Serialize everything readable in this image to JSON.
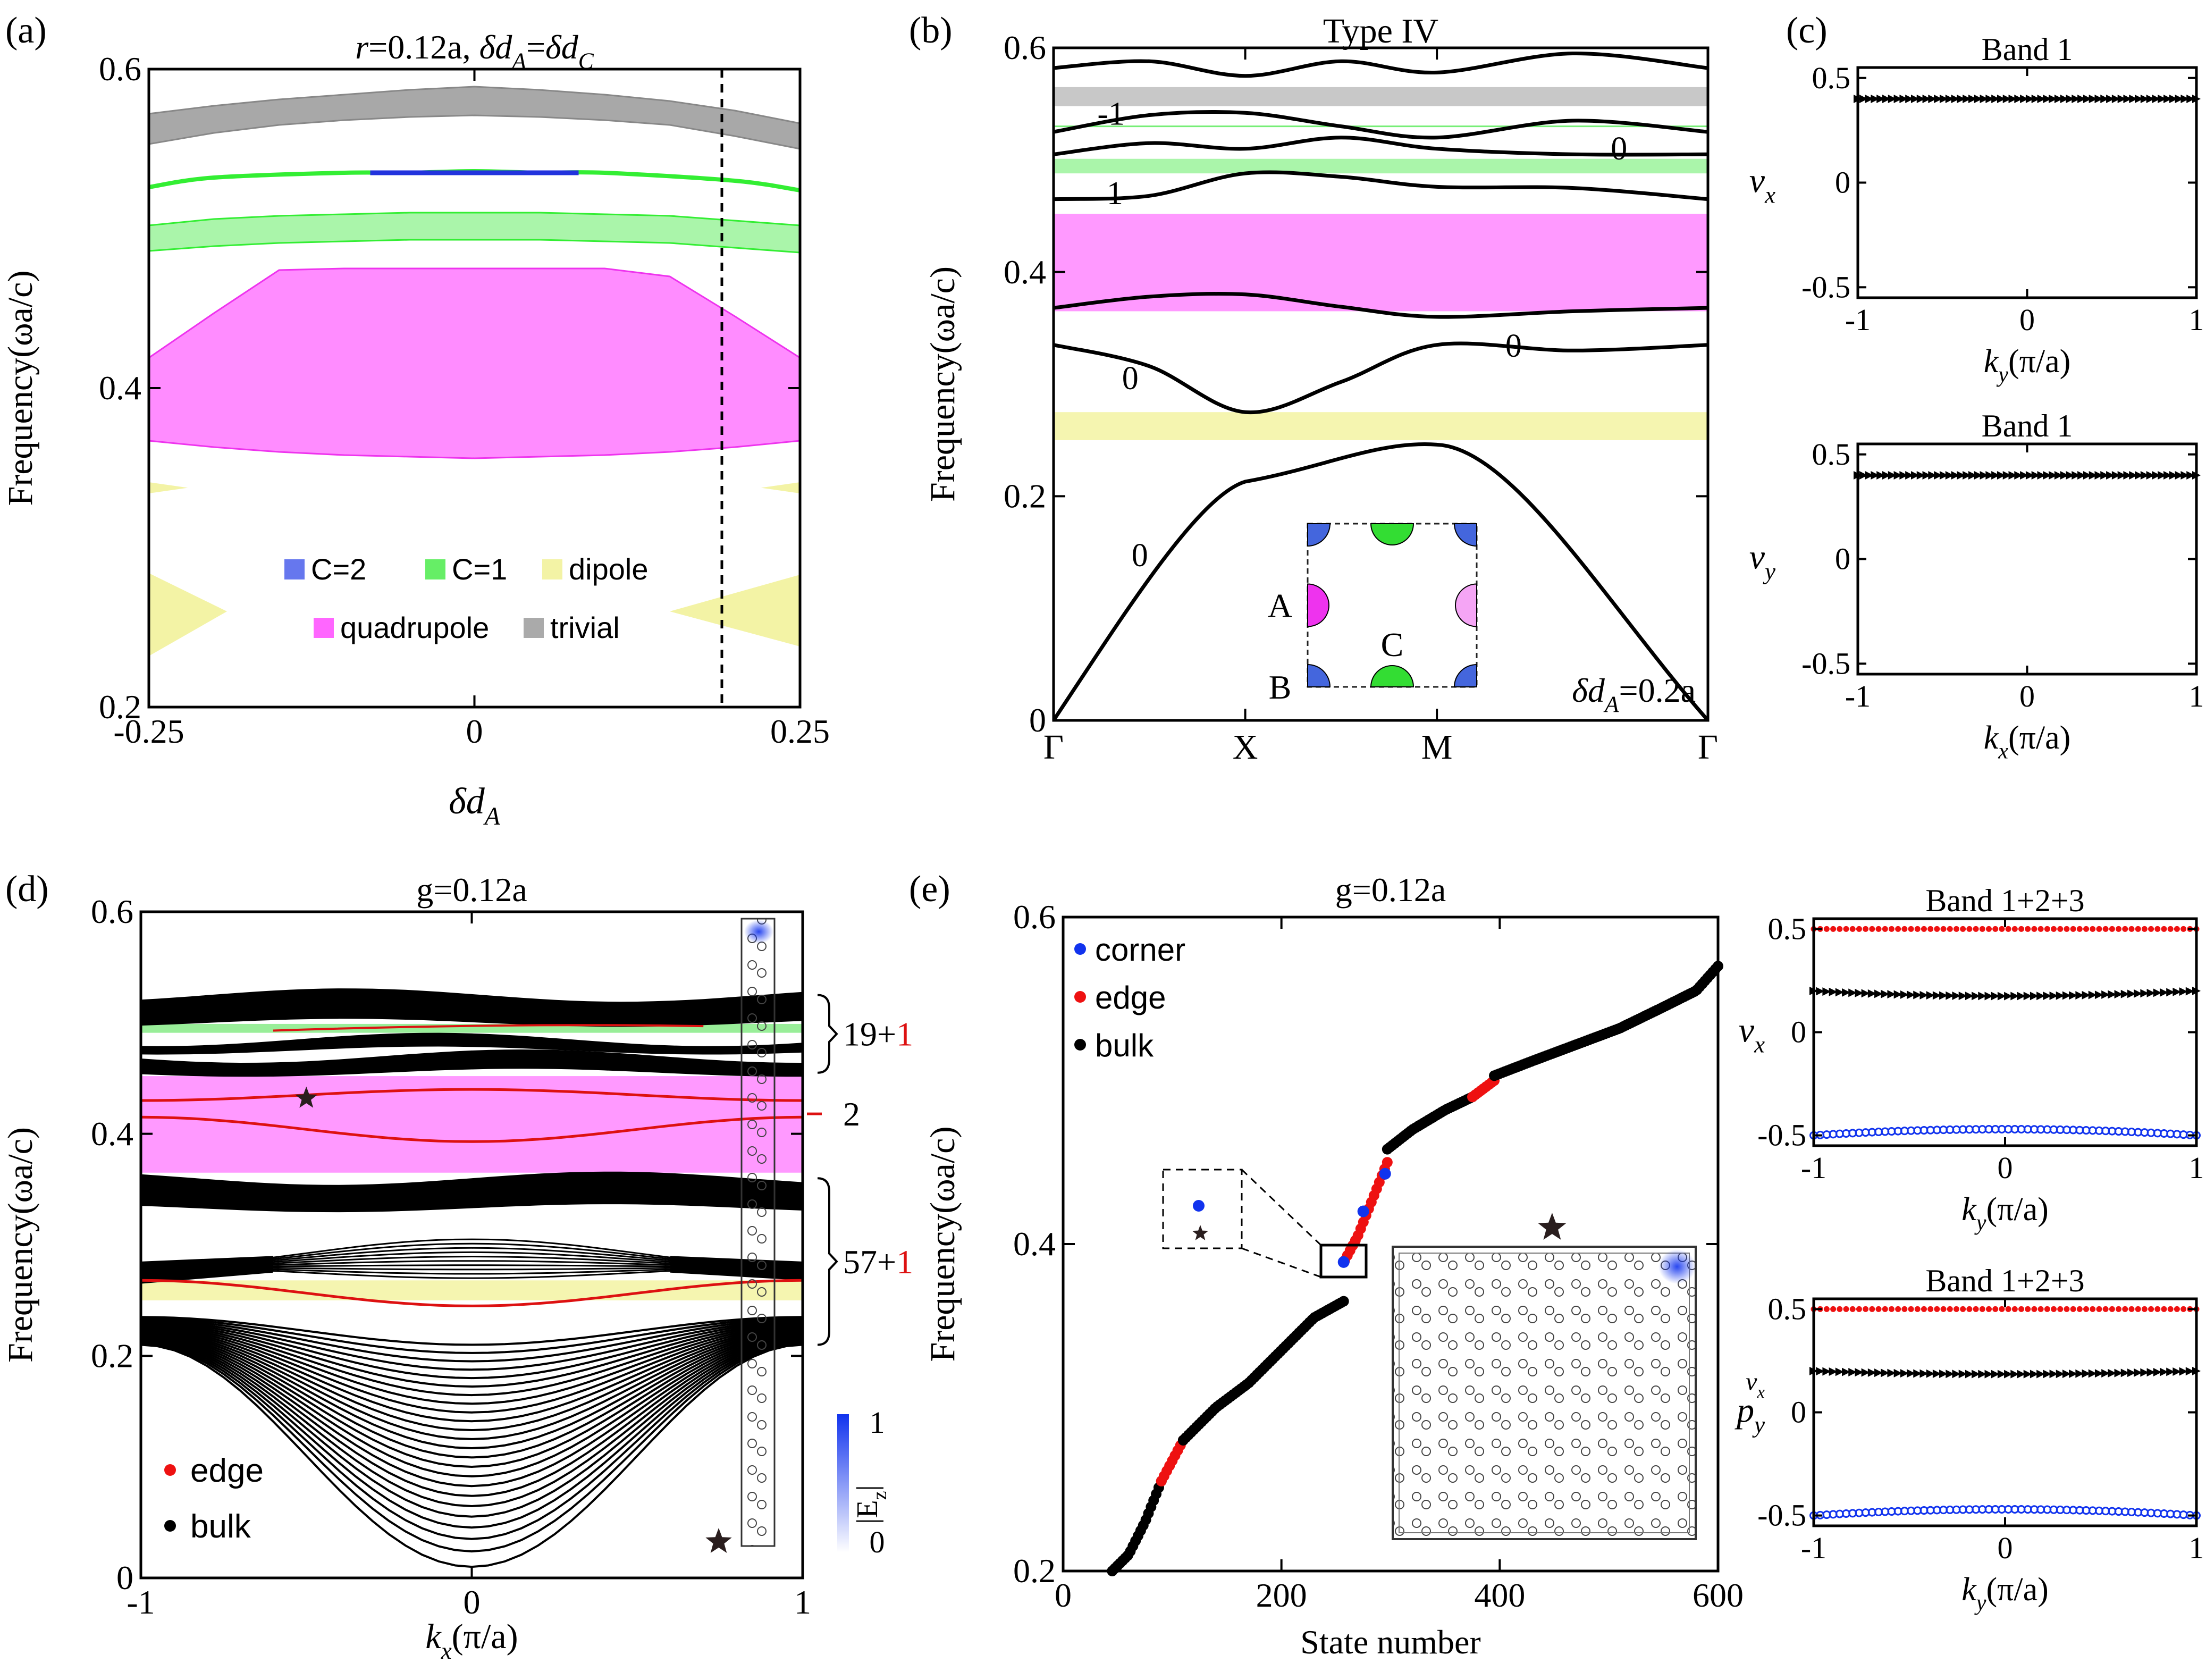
{
  "chart_data": [
    {
      "panel": "(a)",
      "type": "area",
      "title_parts": [
        "r",
        "=0.12a, ",
        "δd",
        "A",
        "=",
        "δd",
        "C"
      ],
      "xlabel_parts": [
        "δd",
        "A"
      ],
      "ylabel": "Frequency(ωa/c)",
      "xlim": [
        -0.25,
        0.25
      ],
      "ylim": [
        0.2,
        0.6
      ],
      "xticks": [
        -0.25,
        0,
        0.25
      ],
      "yticks": [
        0.2,
        0.4,
        0.6
      ],
      "xtick_labels": [
        "-0.25",
        "0",
        "0.25"
      ],
      "ytick_labels": [
        "0.2",
        "0.4",
        "0.6"
      ],
      "dashed_x": 0.19,
      "colors": {
        "trivial": "#a8a8a8",
        "c1": "#33ee33",
        "c1_fill": "#aaf5aa",
        "c2": "#2233dd",
        "quadrupole": "#ff8cff",
        "quadrupole_edge": "#ee33ee",
        "dipole": "#f3f3a5"
      },
      "x": [
        -0.25,
        -0.2,
        -0.15,
        -0.1,
        -0.05,
        0,
        0.05,
        0.1,
        0.15,
        0.2,
        0.25
      ],
      "bands": [
        {
          "name": "trivial",
          "lower": [
            0.553,
            0.56,
            0.565,
            0.568,
            0.57,
            0.571,
            0.57,
            0.568,
            0.565,
            0.558,
            0.55
          ],
          "upper": [
            0.572,
            0.577,
            0.581,
            0.584,
            0.587,
            0.589,
            0.587,
            0.584,
            0.58,
            0.574,
            0.566
          ]
        },
        {
          "name": "C=1",
          "lower": [
            0.486,
            0.489,
            0.491,
            0.492,
            0.493,
            0.493,
            0.493,
            0.492,
            0.491,
            0.488,
            0.485
          ],
          "upper": [
            0.502,
            0.506,
            0.508,
            0.509,
            0.51,
            0.51,
            0.51,
            0.509,
            0.508,
            0.505,
            0.502
          ]
        },
        {
          "name": "quadrupole",
          "lower": [
            0.367,
            0.363,
            0.36,
            0.358,
            0.357,
            0.356,
            0.357,
            0.358,
            0.36,
            0.363,
            0.367
          ],
          "upper": [
            0.419,
            0.447,
            0.474,
            0.475,
            0.475,
            0.475,
            0.475,
            0.475,
            0.47,
            0.445,
            0.419
          ]
        }
      ],
      "c1_line": {
        "x": [
          -0.25,
          -0.2,
          -0.1,
          -0.05,
          0,
          0.05,
          0.1,
          0.2,
          0.25
        ],
        "y": [
          0.526,
          0.532,
          0.535,
          0.535,
          0.536,
          0.535,
          0.535,
          0.53,
          0.524
        ]
      },
      "c2_segment": {
        "x": [
          -0.08,
          0.08
        ],
        "y": [
          0.535,
          0.535
        ]
      },
      "dipole_upper": {
        "x": [
          -0.25,
          -0.19
        ],
        "lower": [
          0.232,
          0.26
        ],
        "upper": [
          0.284,
          0.26
        ]
      },
      "dipole_upper_right": {
        "x": [
          0.15,
          0.25
        ],
        "lower": [
          0.26,
          0.238
        ],
        "upper": [
          0.26,
          0.283
        ]
      },
      "dipole_small": [
        {
          "x": [
            -0.25,
            -0.22
          ],
          "y": [
            0.334,
            0.341
          ]
        },
        {
          "x": [
            0.22,
            0.25
          ],
          "y": [
            0.334,
            0.341
          ]
        }
      ],
      "legend": [
        {
          "label": "C=2",
          "color": "#6677ee",
          "text_color": "#4455dd"
        },
        {
          "label": "C=1",
          "color": "#66ee66",
          "text_color": "#55dd55"
        },
        {
          "label": "dipole",
          "color": "#f3f3a5",
          "text_color": "#e0a020"
        },
        {
          "label": "quadrupole",
          "color": "#ff66ff",
          "text_color": "#ee44ee"
        },
        {
          "label": "trivial",
          "color": "#aaaaaa",
          "text_color": "#aaaaaa"
        }
      ]
    },
    {
      "panel": "(b)",
      "type": "line",
      "title": "Type IV",
      "ylabel": "Frequency(ωa/c)",
      "ylim": [
        0,
        0.6
      ],
      "yticks": [
        0,
        0.2,
        0.4,
        0.6
      ],
      "ytick_labels": [
        "0",
        "0.2",
        "0.4",
        "0.6"
      ],
      "kpoints": [
        "Γ",
        "X",
        "M",
        "Γ"
      ],
      "kpos": [
        0,
        1,
        2,
        3.414
      ],
      "annotation_parts": [
        "δd",
        "A",
        "=0.2a"
      ],
      "gaps": [
        {
          "lo": 0.548,
          "hi": 0.565,
          "color": "#c8c8c8"
        },
        {
          "lo": 0.488,
          "hi": 0.501,
          "color": "#aaf5aa"
        },
        {
          "lo": 0.365,
          "hi": 0.452,
          "color": "#ff99ff"
        },
        {
          "lo": 0.25,
          "hi": 0.275,
          "color": "#f5f5b0"
        }
      ],
      "thin_line": {
        "y": 0.53,
        "color": "#77ee77"
      },
      "k": [
        0,
        0.5,
        1,
        1.5,
        2,
        2.707,
        3.414
      ],
      "bands": [
        [
          0,
          0.118,
          0.213,
          0.23,
          0.246,
          0.13,
          0
        ],
        [
          0.335,
          0.316,
          0.275,
          0.302,
          0.335,
          0.33,
          0.335
        ],
        [
          0.368,
          0.378,
          0.38,
          0.369,
          0.36,
          0.365,
          0.368
        ],
        [
          0.465,
          0.468,
          0.488,
          0.485,
          0.476,
          0.475,
          0.465
        ],
        [
          0.505,
          0.515,
          0.51,
          0.52,
          0.51,
          0.505,
          0.505
        ],
        [
          0.525,
          0.54,
          0.542,
          0.53,
          0.52,
          0.535,
          0.525
        ],
        [
          0.582,
          0.588,
          0.575,
          0.588,
          0.578,
          0.595,
          0.582
        ]
      ],
      "band_labels": [
        {
          "text": "0",
          "k": 0.45,
          "y": 0.147
        },
        {
          "text": "0",
          "k": 0.4,
          "y": 0.305
        },
        {
          "text": "0",
          "k": 2.4,
          "y": 0.334
        },
        {
          "text": "1",
          "k": 0.32,
          "y": 0.47
        },
        {
          "text": "0",
          "k": 2.95,
          "y": 0.51
        },
        {
          "text": "-1",
          "k": 0.3,
          "y": 0.541
        }
      ],
      "inset": {
        "labels": [
          "A",
          "B",
          "C"
        ],
        "colors": {
          "A": "#ee33ee",
          "B": "#4466dd",
          "C": "#33dd33"
        }
      }
    },
    {
      "panel": "(c)",
      "type": "scatter",
      "subplots": [
        {
          "title": "Band 1",
          "ylabel_parts": [
            "v",
            "x"
          ],
          "xlabel_parts": [
            "k",
            "y",
            "(π/a)"
          ],
          "ylim": [
            -0.55,
            0.55
          ],
          "yticks": [
            -0.5,
            0,
            0.5
          ],
          "ytick_labels": [
            "-0.5",
            "0",
            "0.5"
          ],
          "xticks": [
            -1,
            0,
            1
          ],
          "xtick_labels": [
            "-1",
            "0",
            "1"
          ],
          "series": [
            {
              "name": "band1",
              "value": 0.4,
              "marker": "triangle",
              "color": "#000000"
            }
          ]
        },
        {
          "title": "Band 1",
          "ylabel_parts": [
            "v",
            "y"
          ],
          "xlabel_parts": [
            "k",
            "x",
            "(π/a)"
          ],
          "ylim": [
            -0.55,
            0.55
          ],
          "yticks": [
            -0.5,
            0,
            0.5
          ],
          "ytick_labels": [
            "-0.5",
            "0",
            "0.5"
          ],
          "xticks": [
            -1,
            0,
            1
          ],
          "xtick_labels": [
            "-1",
            "0",
            "1"
          ],
          "series": [
            {
              "name": "band1",
              "value": 0.4,
              "marker": "triangle",
              "color": "#000000"
            }
          ]
        }
      ]
    },
    {
      "panel": "(d)",
      "type": "line",
      "title": "g=0.12a",
      "ylabel": "Frequency(ωa/c)",
      "xlabel_parts": [
        "k",
        "x",
        "(π/a)"
      ],
      "xlim": [
        -1,
        1
      ],
      "ylim": [
        0,
        0.6
      ],
      "xticks": [
        -1,
        0,
        1
      ],
      "yticks": [
        0,
        0.2,
        0.4,
        0.6
      ],
      "xtick_labels": [
        "-1",
        "0",
        "1"
      ],
      "ytick_labels": [
        "0",
        "0.2",
        "0.4",
        "0.6"
      ],
      "gaps": [
        {
          "lo": 0.365,
          "hi": 0.452,
          "color": "#ff99ff"
        },
        {
          "lo": 0.25,
          "hi": 0.268,
          "color": "#f5f5b0"
        },
        {
          "lo": 0.491,
          "hi": 0.499,
          "color": "#99ee99"
        }
      ],
      "bulk_lower": {
        "count": 24,
        "center_min": 0.01,
        "edge": [
          0.21,
          0.235
        ],
        "center_max": 0.21
      },
      "bulk_fan": {
        "count": 10,
        "edge": 0.28,
        "center_lo": 0.27,
        "center_hi": 0.305
      },
      "bulk_blocks": [
        {
          "lo": 0.333,
          "hi": 0.36
        },
        {
          "lo": 0.455,
          "hi": 0.47
        },
        {
          "lo": 0.475,
          "hi": 0.485
        },
        {
          "lo": 0.5,
          "hi": 0.525
        }
      ],
      "edge_curves": [
        {
          "edge": 0.43,
          "center": 0.44
        },
        {
          "edge": 0.415,
          "center": 0.393
        },
        {
          "edge": 0.268,
          "center": 0.245
        }
      ],
      "edge_green_segment": {
        "x": [
          -0.6,
          0.7
        ],
        "y": [
          0.493,
          0.497
        ]
      },
      "star": {
        "x": -0.5,
        "y": 0.432
      },
      "brackets": [
        {
          "label_black": "19+",
          "label_red": "1",
          "lo": 0.455,
          "hi": 0.525
        },
        {
          "label_black": "",
          "label_red": "2",
          "lo": 0.405,
          "hi": 0.43
        },
        {
          "label_black": "57+",
          "label_red": "1",
          "lo": 0.21,
          "hi": 0.36
        }
      ],
      "legend": [
        {
          "label": "edge",
          "color": "#ee1111"
        },
        {
          "label": "bulk",
          "color": "#000000"
        }
      ],
      "colorbar": {
        "max": "1",
        "min": "0",
        "label_parts": [
          "|E",
          "z",
          "|"
        ]
      }
    },
    {
      "panel": "(e)",
      "type": "scatter",
      "title": "g=0.12a",
      "xlabel": "State number",
      "ylabel": "Frequency(ωa/c)",
      "xlim": [
        0,
        600
      ],
      "ylim": [
        0.2,
        0.6
      ],
      "xticks": [
        0,
        200,
        400,
        600
      ],
      "yticks": [
        0.2,
        0.4,
        0.6
      ],
      "xtick_labels": [
        "0",
        "200",
        "400",
        "600"
      ],
      "ytick_labels": [
        "0.2",
        "0.4",
        "0.6"
      ],
      "legend": [
        {
          "label": "corner",
          "color": "#1133ee"
        },
        {
          "label": "edge",
          "color": "#ee1111"
        },
        {
          "label": "bulk",
          "color": "#000000"
        }
      ],
      "segments": [
        {
          "kind": "bulk",
          "x": [
            45,
            60,
            75,
            90
          ],
          "y": [
            0.2,
            0.21,
            0.23,
            0.255
          ]
        },
        {
          "kind": "edge",
          "x": [
            90,
            110
          ],
          "y": [
            0.255,
            0.28
          ]
        },
        {
          "kind": "bulk",
          "x": [
            110,
            140,
            170,
            200,
            230,
            257
          ],
          "y": [
            0.28,
            0.3,
            0.315,
            0.335,
            0.355,
            0.365
          ]
        },
        {
          "kind": "edge",
          "x": [
            258,
            270,
            285,
            297
          ],
          "y": [
            0.39,
            0.405,
            0.43,
            0.45
          ]
        },
        {
          "kind": "bulk",
          "x": [
            297,
            320,
            350,
            375
          ],
          "y": [
            0.458,
            0.47,
            0.482,
            0.49
          ]
        },
        {
          "kind": "edge",
          "x": [
            375,
            395
          ],
          "y": [
            0.49,
            0.5
          ]
        },
        {
          "kind": "bulk",
          "x": [
            395,
            430,
            470,
            510,
            550,
            580,
            600
          ],
          "y": [
            0.503,
            0.512,
            0.522,
            0.532,
            0.545,
            0.555,
            0.57
          ]
        }
      ],
      "corner_points": [
        {
          "x": 257,
          "y": 0.389
        },
        {
          "x": 275,
          "y": 0.42
        },
        {
          "x": 295,
          "y": 0.443
        }
      ],
      "star": {
        "x": 448,
        "y": 0.41
      }
    },
    {
      "panel": "(e-right)",
      "type": "scatter",
      "subplots": [
        {
          "title": "Band 1+2+3",
          "ylabel_parts": [
            "v",
            "x"
          ],
          "xlabel_parts": [
            "k",
            "y",
            "(π/a)"
          ],
          "ylim": [
            -0.55,
            0.55
          ],
          "yticks": [
            -0.5,
            0,
            0.5
          ],
          "ytick_labels": [
            "-0.5",
            "0",
            "0.5"
          ],
          "xticks": [
            -1,
            0,
            1
          ],
          "xtick_labels": [
            "-1",
            "0",
            "1"
          ],
          "series": [
            {
              "name": "upper",
              "value": 0.5,
              "marker": "dot",
              "color": "#ee1111"
            },
            {
              "name": "middle",
              "value": 0.2,
              "dip": 0.025,
              "marker": "triangle",
              "color": "#000000"
            },
            {
              "name": "lower",
              "value": -0.5,
              "dip": -0.03,
              "marker": "circle",
              "color": "#1133ee"
            }
          ]
        },
        {
          "title": "Band 1+2+3",
          "ylabel_parts": [
            "p",
            "y",
            "v",
            "x"
          ],
          "xlabel_parts": [
            "k",
            "y",
            "(π/a)"
          ],
          "ylim": [
            -0.55,
            0.55
          ],
          "yticks": [
            -0.5,
            0,
            0.5
          ],
          "ytick_labels": [
            "-0.5",
            "0",
            "0.5"
          ],
          "xticks": [
            -1,
            0,
            1
          ],
          "xtick_labels": [
            "-1",
            "0",
            "1"
          ],
          "series": [
            {
              "name": "upper",
              "value": 0.5,
              "marker": "dot",
              "color": "#ee1111"
            },
            {
              "name": "middle",
              "value": 0.2,
              "dip": 0.015,
              "marker": "triangle",
              "color": "#000000"
            },
            {
              "name": "lower",
              "value": -0.5,
              "dip": -0.03,
              "marker": "circle",
              "color": "#1133ee"
            }
          ]
        }
      ]
    }
  ],
  "panel_labels": [
    "(a)",
    "(b)",
    "(c)",
    "(d)",
    "(e)"
  ]
}
